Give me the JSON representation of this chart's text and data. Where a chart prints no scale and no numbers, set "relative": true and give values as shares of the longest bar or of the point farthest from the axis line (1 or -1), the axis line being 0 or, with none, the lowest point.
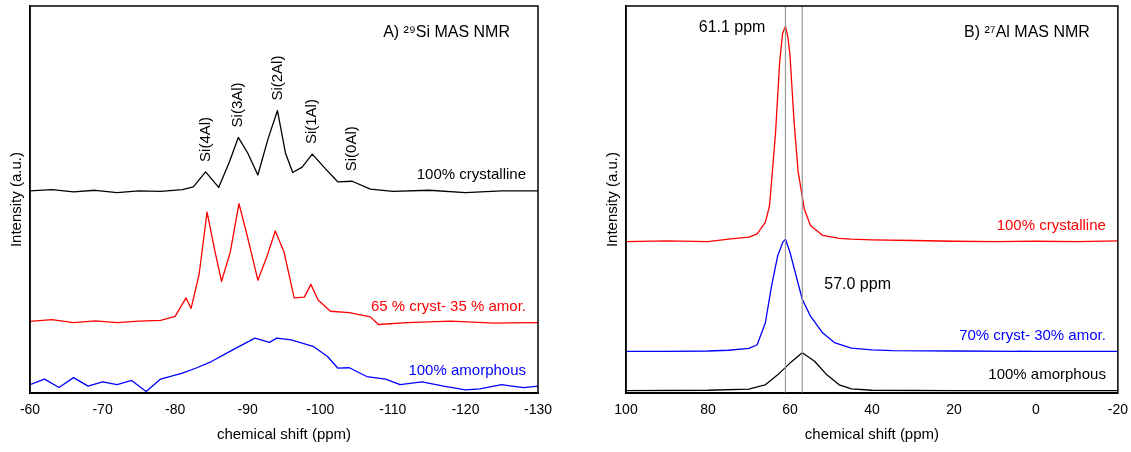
{
  "chart_data": [
    {
      "type": "line",
      "title": "A) ²⁹Si MAS NMR",
      "xlabel": "chemical shift (ppm)",
      "ylabel": "Intensity (a.u.)",
      "relative": true,
      "xlim": [
        -60,
        -130
      ],
      "xticks": [
        -60,
        -70,
        -80,
        -90,
        -100,
        -110,
        -120,
        -130
      ],
      "annotations": [
        {
          "text": "Si(4Al)",
          "x": -84.2,
          "y": 0.783
        },
        {
          "text": "Si(3Al)",
          "x": -88.7,
          "y": 0.905
        },
        {
          "text": "Si(2Al)",
          "x": -94.1,
          "y": 1.0
        },
        {
          "text": "Si(1Al)",
          "x": -98.9,
          "y": 0.846
        },
        {
          "text": "Si(0Al)",
          "x": -104.4,
          "y": 0.75
        }
      ],
      "series": [
        {
          "name": "100% crystalline",
          "color": "#000000",
          "x": [
            -60,
            -63,
            -66,
            -69,
            -72,
            -75,
            -78,
            -81,
            -82.5,
            -84.2,
            -86,
            -87.5,
            -88.7,
            -90,
            -91.4,
            -92.8,
            -94.1,
            -95.2,
            -96.2,
            -97.5,
            -98.9,
            -100.5,
            -102.4,
            -104.4,
            -106.9,
            -110,
            -115,
            -120,
            -125,
            -130
          ],
          "values": [
            0.716,
            0.72,
            0.712,
            0.718,
            0.71,
            0.716,
            0.714,
            0.72,
            0.73,
            0.783,
            0.728,
            0.82,
            0.905,
            0.85,
            0.772,
            0.9,
            1.0,
            0.85,
            0.781,
            0.8,
            0.846,
            0.8,
            0.748,
            0.75,
            0.722,
            0.714,
            0.718,
            0.71,
            0.716,
            0.716
          ]
        },
        {
          "name": "65 % cryst- 35 % amor.",
          "color": "#ff0000",
          "x": [
            -60,
            -63,
            -66,
            -69,
            -72,
            -75,
            -78,
            -80,
            -81.5,
            -82.2,
            -83.3,
            -84.4,
            -85.5,
            -86.4,
            -87.6,
            -88.8,
            -90,
            -91.4,
            -92.6,
            -93.8,
            -95,
            -96.4,
            -97.8,
            -98.7,
            -99.7,
            -101.4,
            -104,
            -106.9,
            -108,
            -112,
            -118,
            -124,
            -130
          ],
          "values": [
            0.254,
            0.26,
            0.25,
            0.256,
            0.25,
            0.255,
            0.258,
            0.272,
            0.337,
            0.3,
            0.42,
            0.641,
            0.5,
            0.396,
            0.5,
            0.671,
            0.55,
            0.4,
            0.48,
            0.574,
            0.5,
            0.337,
            0.34,
            0.385,
            0.33,
            0.29,
            0.285,
            0.27,
            0.243,
            0.25,
            0.255,
            0.248,
            0.25
          ]
        },
        {
          "name": "100% amorphous",
          "color": "#0000ff",
          "x": [
            -60,
            -62,
            -64,
            -66,
            -68,
            -70,
            -72,
            -74,
            -76,
            -78,
            -81,
            -83,
            -85,
            -88,
            -91,
            -93,
            -94,
            -96,
            -99,
            -101,
            -102.4,
            -104,
            -106.4,
            -109,
            -111,
            -114,
            -117,
            -120,
            -122,
            -125,
            -128,
            -130
          ],
          "values": [
            0.03,
            0.05,
            0.02,
            0.055,
            0.025,
            0.04,
            0.03,
            0.045,
            0.006,
            0.05,
            0.071,
            0.09,
            0.112,
            0.154,
            0.195,
            0.18,
            0.195,
            0.189,
            0.166,
            0.13,
            0.089,
            0.09,
            0.059,
            0.05,
            0.03,
            0.04,
            0.025,
            0.012,
            0.015,
            0.03,
            0.02,
            0.025
          ]
        }
      ]
    },
    {
      "type": "line",
      "title": "B) ²⁷Al MAS NMR",
      "xlabel": "chemical shift (ppm)",
      "ylabel": "Intensity (a.u.)",
      "relative": true,
      "xlim": [
        100,
        -20
      ],
      "xticks": [
        100,
        80,
        60,
        40,
        20,
        0,
        -20
      ],
      "ref_lines": [
        {
          "axis": "x",
          "value": 61.1,
          "label": "61.1 ppm",
          "color": "#999999"
        },
        {
          "axis": "x",
          "value": 57.0,
          "label": "57.0 ppm",
          "color": "#999999"
        }
      ],
      "series": [
        {
          "name": "100% crystalline",
          "color": "#ff0000",
          "x": [
            100,
            90,
            80,
            75,
            70,
            68,
            66,
            65,
            64.5,
            63.5,
            62.5,
            61.8,
            61.1,
            60.5,
            60,
            59,
            58,
            56.5,
            55,
            52,
            48,
            45,
            40,
            30,
            20,
            10,
            0,
            -10,
            -20
          ],
          "values": [
            0.413,
            0.415,
            0.413,
            0.42,
            0.425,
            0.434,
            0.466,
            0.51,
            0.575,
            0.712,
            0.904,
            0.98,
            1.0,
            0.97,
            0.922,
            0.74,
            0.603,
            0.502,
            0.457,
            0.43,
            0.422,
            0.42,
            0.418,
            0.416,
            0.414,
            0.413,
            0.414,
            0.413,
            0.415
          ]
        },
        {
          "name": "70% cryst- 30% amor.",
          "color": "#0000ff",
          "x": [
            100,
            90,
            80,
            75,
            70,
            68,
            66,
            64.5,
            63,
            61.8,
            61.1,
            60,
            58.5,
            57,
            55,
            52,
            49,
            45,
            40,
            35,
            20,
            0,
            -20
          ],
          "values": [
            0.114,
            0.114,
            0.115,
            0.117,
            0.122,
            0.132,
            0.192,
            0.292,
            0.374,
            0.41,
            0.42,
            0.384,
            0.32,
            0.256,
            0.21,
            0.164,
            0.137,
            0.123,
            0.118,
            0.116,
            0.115,
            0.114,
            0.114
          ]
        },
        {
          "name": "100% amorphous",
          "color": "#000000",
          "x": [
            100,
            80,
            70,
            66,
            63,
            60,
            57,
            54,
            51,
            48,
            45,
            40,
            20,
            0,
            -20
          ],
          "values": [
            0.007,
            0.008,
            0.011,
            0.023,
            0.05,
            0.082,
            0.11,
            0.087,
            0.05,
            0.023,
            0.012,
            0.008,
            0.007,
            0.007,
            0.007
          ]
        }
      ]
    }
  ]
}
